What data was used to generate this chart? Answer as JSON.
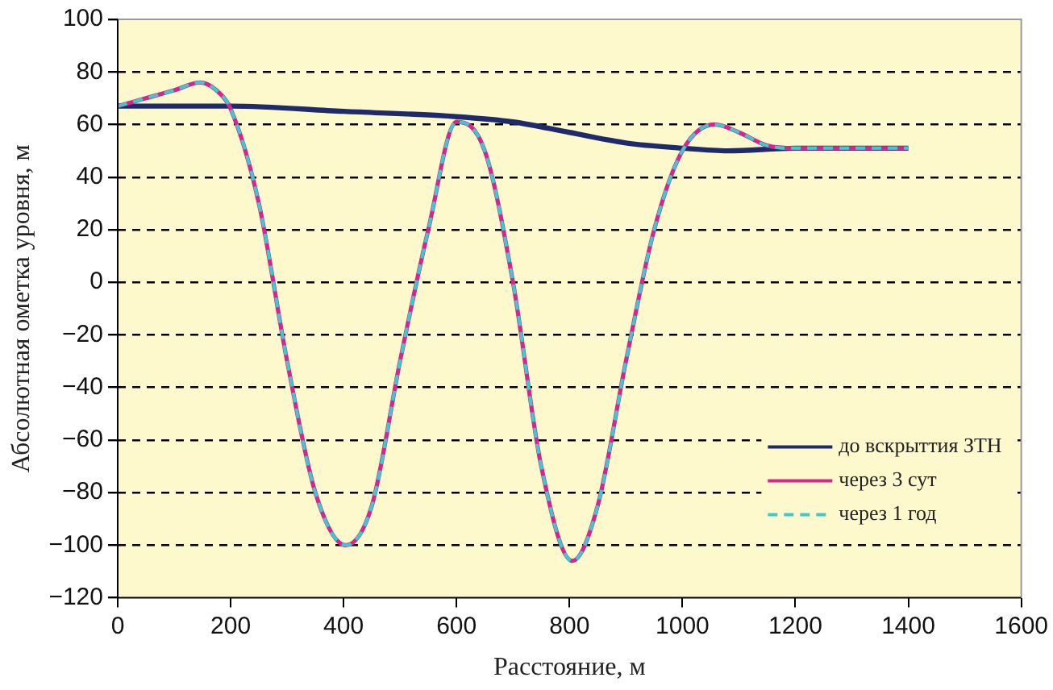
{
  "chart_data": {
    "type": "line",
    "xlabel": "Расстояние, м",
    "ylabel": "Абсолютная ометка уровня, м",
    "xlim": [
      0,
      1600
    ],
    "xticks": [
      0,
      200,
      400,
      600,
      800,
      1000,
      1200,
      1400,
      1600
    ],
    "ylim": [
      -120,
      100
    ],
    "yticks": [
      -120,
      -100,
      -80,
      -60,
      -40,
      -20,
      0,
      20,
      40,
      60,
      80,
      100
    ],
    "grid": "y",
    "legend": "bottom right",
    "marker": "none",
    "series": [
      {
        "name": "до вскрыттия ЗТН",
        "color": "#1f2a6b",
        "line_style": "solid",
        "x": [
          0,
          200,
          400,
          600,
          700,
          800,
          900,
          1000,
          1080,
          1200,
          1400
        ],
        "values": [
          67,
          67,
          65,
          63,
          61,
          57,
          53,
          51,
          50,
          51,
          51
        ]
      },
      {
        "name": "через 3 сут",
        "color": "#d0288c",
        "line_style": "solid",
        "x": [
          0,
          50,
          100,
          146,
          180,
          200,
          250,
          300,
          350,
          404,
          450,
          500,
          550,
          600,
          650,
          700,
          750,
          805,
          850,
          900,
          950,
          1000,
          1057,
          1100,
          1150,
          1200,
          1400
        ],
        "values": [
          67,
          70,
          73,
          76,
          72,
          66,
          30,
          -30,
          -80,
          -100,
          -85,
          -30,
          20,
          61,
          50,
          0,
          -70,
          -106,
          -85,
          -30,
          20,
          50,
          60,
          57,
          52,
          51,
          51
        ]
      },
      {
        "name": "через 1 год",
        "color": "#40c8d0",
        "line_style": "dashed",
        "x": [
          0,
          50,
          100,
          146,
          180,
          200,
          250,
          300,
          350,
          404,
          450,
          500,
          550,
          600,
          650,
          700,
          750,
          805,
          850,
          900,
          950,
          1000,
          1057,
          1100,
          1150,
          1200,
          1400
        ],
        "values": [
          67,
          70,
          73,
          76,
          72,
          66,
          30,
          -30,
          -80,
          -100,
          -85,
          -30,
          20,
          61,
          50,
          0,
          -70,
          -106,
          -85,
          -30,
          20,
          50,
          60,
          57,
          52,
          51,
          51
        ]
      }
    ]
  }
}
